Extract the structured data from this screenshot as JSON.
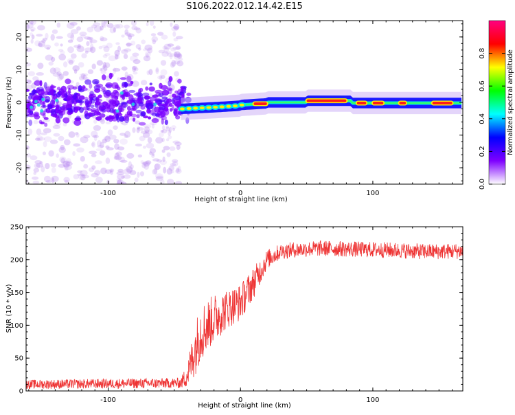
{
  "chart_data": [
    {
      "type": "heatmap",
      "title": "S106.2022.012.14.42.E15",
      "xlabel": "Height of straight line (km)",
      "ylabel": "Frequency (Hz)",
      "xlim": [
        -162,
        168
      ],
      "ylim": [
        -25,
        25
      ],
      "x_ticks": [
        -100,
        0,
        100
      ],
      "y_ticks": [
        -20,
        -10,
        0,
        10,
        20
      ],
      "colorbar": {
        "label": "Normalized spectral amplitude",
        "range": [
          0.0,
          1.0
        ],
        "ticks": [
          "0.0",
          "0.2",
          "0.4",
          "0.6",
          "0.8"
        ],
        "colormap": [
          "#ffffff",
          "#7f00ff",
          "#0000ff",
          "#00ffff",
          "#00ff00",
          "#ffff00",
          "#ff0000",
          "#ff0080"
        ]
      },
      "features": {
        "scatter_region_km": [
          -162,
          -45
        ],
        "scatter_freq_spread_hz": 25,
        "main_band_freq_hz": 0,
        "narrow_band_region_km": [
          -45,
          168
        ],
        "strong_segments_km": [
          [
            10,
            20
          ],
          [
            50,
            80
          ],
          [
            88,
            95
          ],
          [
            100,
            108
          ],
          [
            120,
            125
          ],
          [
            145,
            160
          ]
        ]
      }
    },
    {
      "type": "line",
      "xlabel": "Height of straight line (km)",
      "ylabel": "SNR (10 * v/v)",
      "xlim": [
        -162,
        168
      ],
      "ylim": [
        0,
        250
      ],
      "x_ticks": [
        -100,
        0,
        100
      ],
      "y_ticks": [
        0,
        50,
        100,
        150,
        200,
        250
      ],
      "series": [
        {
          "color": "#ee3333",
          "envelope_x": [
            -162,
            -45,
            -40,
            -35,
            -30,
            -25,
            -20,
            -10,
            0,
            10,
            20,
            30,
            40,
            60,
            80,
            100,
            120,
            140,
            168
          ],
          "envelope_y": [
            10,
            12,
            25,
            60,
            90,
            100,
            110,
            125,
            135,
            165,
            200,
            212,
            215,
            217,
            216,
            215,
            214,
            212,
            213
          ],
          "noise_amplitude": [
            7,
            8,
            20,
            40,
            45,
            40,
            38,
            30,
            28,
            24,
            15,
            12,
            12,
            12,
            12,
            12,
            12,
            12,
            12
          ]
        }
      ]
    }
  ]
}
